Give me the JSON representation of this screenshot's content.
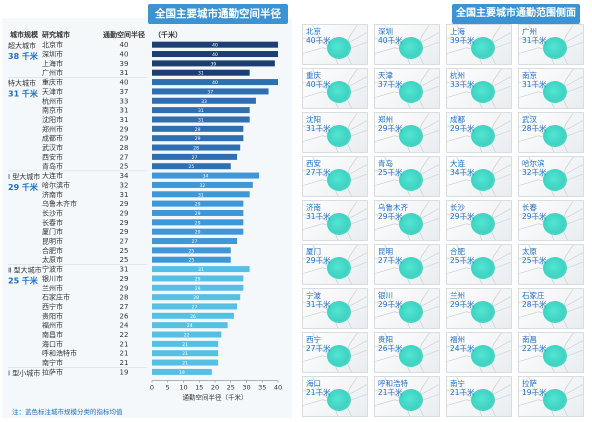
{
  "left_title": "全国主要城市通勤空间半径",
  "right_title": "全国主要城市通勤范围侧面",
  "headers": {
    "scale": "城市规模",
    "city": "研究城市",
    "value": "通勤空间半径",
    "unit": "（千米）"
  },
  "note": "注：蓝色标注城市规模分类的指标均值",
  "chart_data": {
    "type": "bar",
    "orientation": "horizontal",
    "xlabel": "通勤空间半径（千米）",
    "xlim": [
      0,
      40
    ],
    "xticks": [
      0,
      5,
      10,
      15,
      20,
      25,
      30,
      35,
      40
    ],
    "categories": [
      "北京市",
      "深圳市",
      "上海市",
      "广州市",
      "重庆市",
      "天津市",
      "杭州市",
      "南京市",
      "沈阳市",
      "郑州市",
      "成都市",
      "武汉市",
      "西安市",
      "青岛市",
      "大连市",
      "哈尔滨市",
      "济南市",
      "乌鲁木齐市",
      "长沙市",
      "长春市",
      "厦门市",
      "昆明市",
      "合肥市",
      "太原市",
      "宁波市",
      "银川市",
      "兰州市",
      "石家庄市",
      "西宁市",
      "贵阳市",
      "福州市",
      "南昌市",
      "海口市",
      "呼和浩特市",
      "南宁市",
      "拉萨市"
    ],
    "values": [
      40,
      40,
      39,
      31,
      40,
      37,
      33,
      31,
      31,
      29,
      29,
      28,
      27,
      25,
      34,
      32,
      31,
      29,
      29,
      29,
      29,
      27,
      25,
      25,
      31,
      29,
      29,
      28,
      27,
      26,
      24,
      22,
      21,
      21,
      21,
      19
    ],
    "groups": [
      {
        "label": "超大城市",
        "mean": "38 千米",
        "start": 0,
        "end": 3,
        "color": "#1f6fc4"
      },
      {
        "label": "特大城市",
        "mean": "31 千米",
        "start": 4,
        "end": 13,
        "color": "#1f6fc4"
      },
      {
        "label": "Ⅰ 型大城市",
        "mean": "29 千米",
        "start": 14,
        "end": 23,
        "color": "#1f6fc4"
      },
      {
        "label": "Ⅱ 型大城市",
        "mean": "25 千米",
        "start": 24,
        "end": 34,
        "color": "#1f6fc4"
      },
      {
        "label": "Ⅰ 型小城市",
        "mean": "",
        "start": 35,
        "end": 35,
        "color": "#1f6fc4"
      }
    ],
    "group_bar_colors": [
      "#1d3e73",
      "#2f6fb0",
      "#3f97d8",
      "#56c0e4",
      "#56c0e4"
    ]
  },
  "map_tiles": [
    {
      "city": "北京",
      "radius": "40千米"
    },
    {
      "city": "深圳",
      "radius": "40千米"
    },
    {
      "city": "上海",
      "radius": "39千米"
    },
    {
      "city": "广州",
      "radius": "31千米"
    },
    {
      "city": "重庆",
      "radius": "40千米"
    },
    {
      "city": "天津",
      "radius": "37千米"
    },
    {
      "city": "杭州",
      "radius": "33千米"
    },
    {
      "city": "南京",
      "radius": "31千米"
    },
    {
      "city": "沈阳",
      "radius": "31千米"
    },
    {
      "city": "郑州",
      "radius": "29千米"
    },
    {
      "city": "成都",
      "radius": "29千米"
    },
    {
      "city": "武汉",
      "radius": "28千米"
    },
    {
      "city": "西安",
      "radius": "27千米"
    },
    {
      "city": "青岛",
      "radius": "25千米"
    },
    {
      "city": "大连",
      "radius": "34千米"
    },
    {
      "city": "哈尔滨",
      "radius": "32千米"
    },
    {
      "city": "济南",
      "radius": "31千米"
    },
    {
      "city": "乌鲁木齐",
      "radius": "29千米"
    },
    {
      "city": "长沙",
      "radius": "29千米"
    },
    {
      "city": "长春",
      "radius": "29千米"
    },
    {
      "city": "厦门",
      "radius": "29千米"
    },
    {
      "city": "昆明",
      "radius": "27千米"
    },
    {
      "city": "合肥",
      "radius": "25千米"
    },
    {
      "city": "太原",
      "radius": "25千米"
    },
    {
      "city": "宁波",
      "radius": "31千米"
    },
    {
      "city": "银川",
      "radius": "29千米"
    },
    {
      "city": "兰州",
      "radius": "29千米"
    },
    {
      "city": "石家庄",
      "radius": "28千米"
    },
    {
      "city": "西宁",
      "radius": "27千米"
    },
    {
      "city": "贵阳",
      "radius": "26千米"
    },
    {
      "city": "福州",
      "radius": "24千米"
    },
    {
      "city": "南昌",
      "radius": "22千米"
    },
    {
      "city": "海口",
      "radius": "21千米"
    },
    {
      "city": "呼和浩特",
      "radius": "21千米"
    },
    {
      "city": "南宁",
      "radius": "21千米"
    },
    {
      "city": "拉萨",
      "radius": "19千米"
    }
  ],
  "colors": {
    "accent": "#3c93d4",
    "label_blue": "#1f6fc4",
    "blob": "#3fd3c2"
  }
}
